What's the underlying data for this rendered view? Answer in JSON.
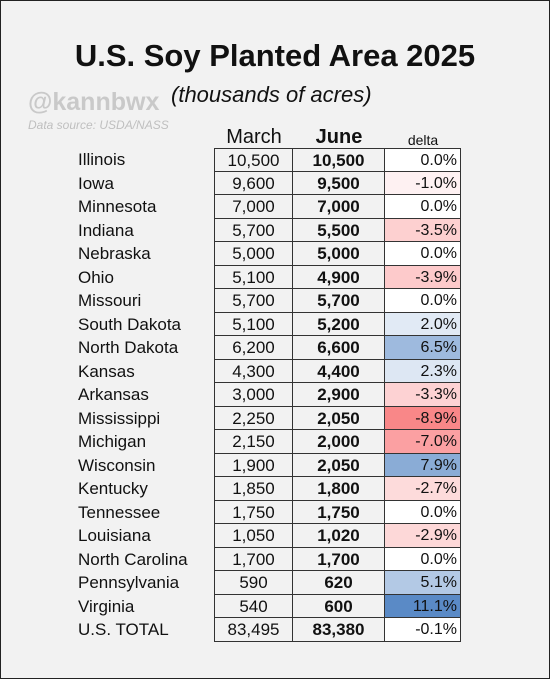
{
  "title": "U.S. Soy Planted Area 2025",
  "handle": "@kannbwx",
  "subtitle": "(thousands of acres)",
  "source": "Data source: USDA/NASS",
  "headers": {
    "march": "March",
    "june": "June",
    "delta": "delta"
  },
  "colors": {
    "negative": "#f8696b",
    "positive": "#5a8ac6",
    "neutral": "#ffffff"
  },
  "chart_data": {
    "type": "table",
    "title": "U.S. Soy Planted Area 2025",
    "subtitle": "(thousands of acres)",
    "columns": [
      "March",
      "June",
      "delta"
    ],
    "rows": [
      {
        "state": "Illinois",
        "march": "10,500",
        "june": "10,500",
        "delta": "0.0%",
        "delta_value": 0.0
      },
      {
        "state": "Iowa",
        "march": "9,600",
        "june": "9,500",
        "delta": "-1.0%",
        "delta_value": -1.0
      },
      {
        "state": "Minnesota",
        "march": "7,000",
        "june": "7,000",
        "delta": "0.0%",
        "delta_value": 0.0
      },
      {
        "state": "Indiana",
        "march": "5,700",
        "june": "5,500",
        "delta": "-3.5%",
        "delta_value": -3.5
      },
      {
        "state": "Nebraska",
        "march": "5,000",
        "june": "5,000",
        "delta": "0.0%",
        "delta_value": 0.0
      },
      {
        "state": "Ohio",
        "march": "5,100",
        "june": "4,900",
        "delta": "-3.9%",
        "delta_value": -3.9
      },
      {
        "state": "Missouri",
        "march": "5,700",
        "june": "5,700",
        "delta": "0.0%",
        "delta_value": 0.0
      },
      {
        "state": "South Dakota",
        "march": "5,100",
        "june": "5,200",
        "delta": "2.0%",
        "delta_value": 2.0
      },
      {
        "state": "North Dakota",
        "march": "6,200",
        "june": "6,600",
        "delta": "6.5%",
        "delta_value": 6.5
      },
      {
        "state": "Kansas",
        "march": "4,300",
        "june": "4,400",
        "delta": "2.3%",
        "delta_value": 2.3
      },
      {
        "state": "Arkansas",
        "march": "3,000",
        "june": "2,900",
        "delta": "-3.3%",
        "delta_value": -3.3
      },
      {
        "state": "Mississippi",
        "march": "2,250",
        "june": "2,050",
        "delta": "-8.9%",
        "delta_value": -8.9
      },
      {
        "state": "Michigan",
        "march": "2,150",
        "june": "2,000",
        "delta": "-7.0%",
        "delta_value": -7.0
      },
      {
        "state": "Wisconsin",
        "march": "1,900",
        "june": "2,050",
        "delta": "7.9%",
        "delta_value": 7.9
      },
      {
        "state": "Kentucky",
        "march": "1,850",
        "june": "1,800",
        "delta": "-2.7%",
        "delta_value": -2.7
      },
      {
        "state": "Tennessee",
        "march": "1,750",
        "june": "1,750",
        "delta": "0.0%",
        "delta_value": 0.0
      },
      {
        "state": "Louisiana",
        "march": "1,050",
        "june": "1,020",
        "delta": "-2.9%",
        "delta_value": -2.9
      },
      {
        "state": "North Carolina",
        "march": "1,700",
        "june": "1,700",
        "delta": "0.0%",
        "delta_value": 0.0
      },
      {
        "state": "Pennsylvania",
        "march": "590",
        "june": "620",
        "delta": "5.1%",
        "delta_value": 5.1
      },
      {
        "state": "Virginia",
        "march": "540",
        "june": "600",
        "delta": "11.1%",
        "delta_value": 11.1
      },
      {
        "state": "U.S. TOTAL",
        "march": "83,495",
        "june": "83,380",
        "delta": "-0.1%",
        "delta_value": -0.1
      }
    ]
  }
}
